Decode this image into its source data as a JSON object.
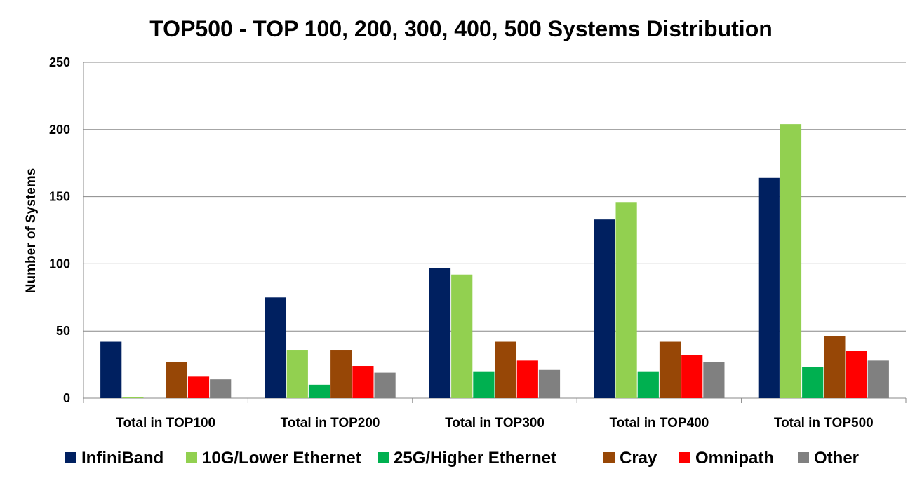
{
  "chart_data": {
    "type": "bar",
    "title": "TOP500 - TOP 100, 200, 300, 400, 500 Systems Distribution",
    "xlabel": "",
    "ylabel": "Number of Systems",
    "ylim": [
      0,
      250
    ],
    "yticks": [
      0,
      50,
      100,
      150,
      200,
      250
    ],
    "grid": true,
    "legend_position": "bottom",
    "categories": [
      "Total in TOP100",
      "Total in TOP200",
      "Total in TOP300",
      "Total in TOP400",
      "Total in TOP500"
    ],
    "series": [
      {
        "name": "InfiniBand",
        "color": "#002060",
        "values": [
          42,
          75,
          97,
          133,
          164
        ]
      },
      {
        "name": "10G/Lower Ethernet",
        "color": "#92D050",
        "values": [
          1,
          36,
          92,
          146,
          204
        ]
      },
      {
        "name": "25G/Higher Ethernet",
        "color": "#00B050",
        "values": [
          0,
          10,
          20,
          20,
          23
        ]
      },
      {
        "name": "Cray",
        "color": "#974706",
        "values": [
          27,
          36,
          42,
          42,
          46
        ]
      },
      {
        "name": "Omnipath",
        "color": "#FF0000",
        "values": [
          16,
          24,
          28,
          32,
          35
        ]
      },
      {
        "name": "Other",
        "color": "#808080",
        "values": [
          14,
          19,
          21,
          27,
          28
        ]
      }
    ]
  }
}
